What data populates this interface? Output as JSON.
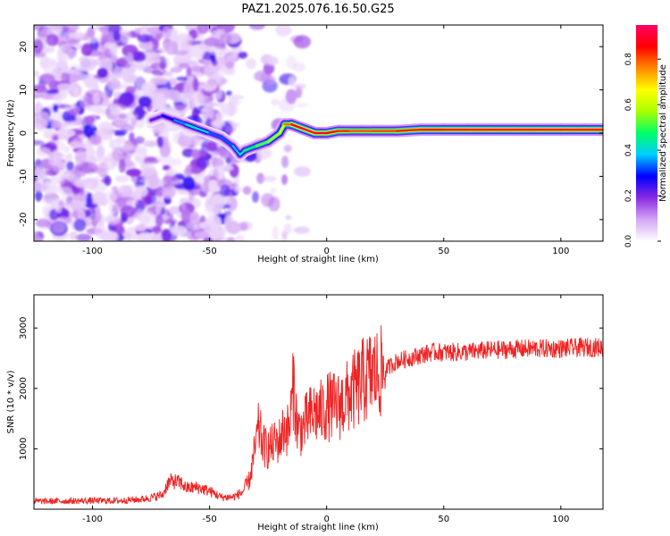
{
  "figure_title": "PAZ1.2025.076.16.50.G25",
  "chart_data": [
    {
      "type": "heatmap",
      "title": "",
      "xlabel": "Height of straight line (km)",
      "ylabel": "Frequency (Hz)",
      "xlim": [
        -125,
        118
      ],
      "ylim": [
        -25,
        25
      ],
      "xticks": [
        -100,
        -50,
        0,
        50,
        100
      ],
      "yticks": [
        20,
        10,
        0,
        -10,
        -20
      ],
      "colorbar": {
        "label": "Normalized spectral amplitude",
        "range": [
          0,
          0.95
        ],
        "ticks": [
          0.0,
          0.2,
          0.4,
          0.6,
          0.8
        ],
        "colors": [
          "#ffffff",
          "#d4a6f5",
          "#8a2be2",
          "#0000ff",
          "#00ccff",
          "#00ff66",
          "#aaff00",
          "#ffff00",
          "#ff8800",
          "#ff0000",
          "#ff0066"
        ]
      },
      "ridge": {
        "x": [
          -75,
          -70,
          -65,
          -60,
          -55,
          -50,
          -45,
          -40,
          -37,
          -35,
          -30,
          -25,
          -20,
          -18,
          -15,
          -10,
          -5,
          0,
          5,
          10,
          15,
          20,
          30,
          40,
          50,
          60,
          70,
          80,
          90,
          100,
          110,
          118
        ],
        "y": [
          3,
          4,
          3,
          2,
          1,
          0,
          -1,
          -3,
          -5,
          -4,
          -3,
          -2,
          0,
          2,
          2,
          1,
          0,
          0,
          0.5,
          0.5,
          0.5,
          0.5,
          0.5,
          0.8,
          0.8,
          0.8,
          0.8,
          0.8,
          0.8,
          0.8,
          0.8,
          0.8
        ],
        "amplitude": [
          0.2,
          0.25,
          0.3,
          0.4,
          0.45,
          0.35,
          0.3,
          0.35,
          0.4,
          0.45,
          0.5,
          0.55,
          0.6,
          0.7,
          0.85,
          0.95,
          0.9,
          0.9,
          0.85,
          0.8,
          0.8,
          0.8,
          0.82,
          0.85,
          0.88,
          0.9,
          0.9,
          0.9,
          0.9,
          0.9,
          0.9,
          0.9
        ]
      }
    },
    {
      "type": "line",
      "title": "",
      "xlabel": "Height of straight line (km)",
      "ylabel": "SNR (10 * v/v)",
      "xlim": [
        -125,
        118
      ],
      "ylim": [
        0,
        3550
      ],
      "xticks": [
        -100,
        -50,
        0,
        50,
        100
      ],
      "yticks": [
        1000,
        2000,
        3000
      ],
      "color": "#ee2222",
      "envelope": {
        "x": [
          -125,
          -100,
          -90,
          -80,
          -75,
          -70,
          -68,
          -66,
          -64,
          -62,
          -60,
          -55,
          -50,
          -45,
          -40,
          -36,
          -33,
          -31,
          -29,
          -27,
          -25,
          -22,
          -20,
          -18,
          -16,
          -15,
          -14,
          -13,
          -12,
          -10,
          -8,
          -5,
          -2,
          0,
          3,
          5,
          8,
          10,
          13,
          15,
          18,
          20,
          23,
          25,
          28,
          30,
          35,
          40,
          45,
          50,
          55,
          60,
          65,
          70,
          80,
          90,
          100,
          110,
          118
        ],
        "y": [
          130,
          140,
          140,
          160,
          190,
          240,
          420,
          470,
          450,
          430,
          350,
          360,
          300,
          200,
          200,
          280,
          480,
          900,
          1350,
          1050,
          1000,
          1100,
          1150,
          1350,
          1300,
          1700,
          2100,
          1500,
          1300,
          1350,
          1500,
          1600,
          1600,
          1700,
          1700,
          1700,
          1800,
          1900,
          2000,
          2100,
          2200,
          2250,
          2250,
          2300,
          2400,
          2450,
          2500,
          2550,
          2600,
          2600,
          2600,
          2600,
          2620,
          2630,
          2650,
          2660,
          2660,
          2680,
          2680
        ]
      }
    }
  ]
}
